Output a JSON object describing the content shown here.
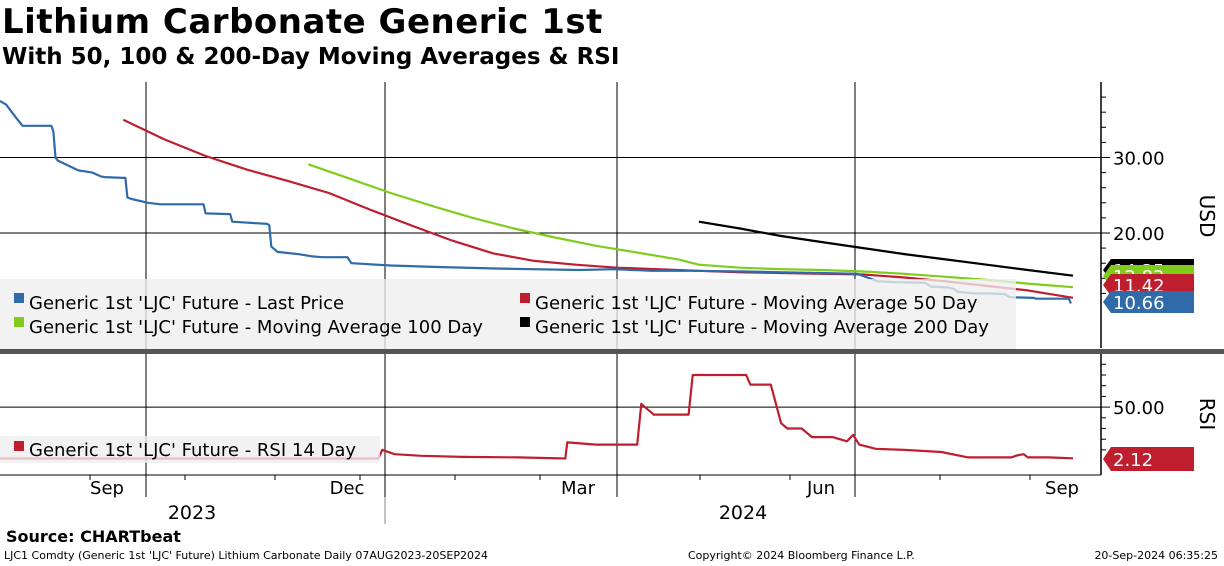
{
  "title": "Lithium Carbonate Generic 1st",
  "subtitle": "With 50, 100 & 200-Day Moving Averages & RSI",
  "source": "Source: CHARTbeat",
  "footer": {
    "left": "LJC1 Comdty (Generic 1st 'LJC' Future) Lithium Carbonate  Daily 07AUG2023-20SEP2024",
    "center": "Copyright© 2024 Bloomberg Finance L.P.",
    "right": "20-Sep-2024 06:35:25"
  },
  "chart_data": [
    {
      "type": "line",
      "panel": "price",
      "ylabel": "USD",
      "ylim": [
        9,
        40
      ],
      "yticks": [
        {
          "value": 20,
          "label": "20.00"
        },
        {
          "value": 30,
          "label": "30.00"
        }
      ],
      "x_month_labels": [
        "Sep",
        "Dec",
        "Mar",
        "Jun",
        "Sep"
      ],
      "x_year_labels": [
        "2023",
        "2024"
      ],
      "series": [
        {
          "name": "Generic 1st 'LJC' Future - Last Price",
          "color": "#2f6ba8",
          "points": [
            [
              0,
              37.5
            ],
            [
              3,
              37
            ],
            [
              8,
              35.2
            ],
            [
              11,
              34.2
            ],
            [
              25,
              34.2
            ],
            [
              26,
              33.4
            ],
            [
              27,
              30
            ],
            [
              28,
              29.6
            ],
            [
              38,
              28.3
            ],
            [
              45,
              28
            ],
            [
              49,
              27.5
            ],
            [
              51,
              27.4
            ],
            [
              60,
              27.3
            ],
            [
              61,
              27.3
            ],
            [
              62,
              24.7
            ],
            [
              64,
              24.5
            ],
            [
              72,
              24
            ],
            [
              78,
              23.8
            ],
            [
              99,
              23.8
            ],
            [
              100,
              22.6
            ],
            [
              112,
              22.5
            ],
            [
              113,
              21.5
            ],
            [
              130,
              21.2
            ],
            [
              131,
              21.0
            ],
            [
              132,
              18.2
            ],
            [
              135,
              17.5
            ],
            [
              145,
              17.2
            ],
            [
              152,
              16.9
            ],
            [
              157,
              16.8
            ],
            [
              169,
              16.8
            ],
            [
              171,
              16.0
            ],
            [
              190,
              15.7
            ],
            [
              213,
              15.5
            ],
            [
              241,
              15.3
            ],
            [
              259,
              15.2
            ],
            [
              282,
              15.1
            ],
            [
              299,
              15.2
            ],
            [
              317,
              15.0
            ],
            [
              336,
              15.0
            ],
            [
              363,
              14.9
            ],
            [
              381,
              14.8
            ],
            [
              399,
              14.7
            ],
            [
              417,
              14.6
            ],
            [
              427,
              13.6
            ],
            [
              435,
              13.5
            ],
            [
              450,
              13.4
            ],
            [
              453,
              12.9
            ],
            [
              461,
              12.8
            ],
            [
              464,
              12.6
            ],
            [
              466,
              12.2
            ],
            [
              474,
              12.0
            ],
            [
              482,
              12.0
            ],
            [
              489,
              11.9
            ],
            [
              491,
              11.5
            ],
            [
              503,
              11.4
            ],
            [
              504,
              11.3
            ],
            [
              520,
              11.3
            ],
            [
              521,
              10.66
            ]
          ]
        },
        {
          "name": "Generic 1st 'LJC' Future - Moving Average 50 Day",
          "color": "#be1e2d",
          "points": [
            [
              60,
              35
            ],
            [
              80,
              32.4
            ],
            [
              100,
              30.2
            ],
            [
              120,
              28.4
            ],
            [
              140,
              26.9
            ],
            [
              160,
              25.3
            ],
            [
              180,
              23.1
            ],
            [
              200,
              21.0
            ],
            [
              220,
              19.0
            ],
            [
              240,
              17.3
            ],
            [
              260,
              16.3
            ],
            [
              280,
              15.8
            ],
            [
              300,
              15.4
            ],
            [
              320,
              15.2
            ],
            [
              340,
              15.0
            ],
            [
              360,
              14.8
            ],
            [
              380,
              14.7
            ],
            [
              400,
              14.6
            ],
            [
              420,
              14.5
            ],
            [
              440,
              14.1
            ],
            [
              460,
              13.6
            ],
            [
              480,
              13.0
            ],
            [
              500,
              12.4
            ],
            [
              522,
              11.42
            ]
          ]
        },
        {
          "name": "Generic 1st 'LJC' Future - Moving Average 100 Day",
          "color": "#7fcc1c",
          "points": [
            [
              150,
              29.1
            ],
            [
              170,
              27.2
            ],
            [
              190,
              25.3
            ],
            [
              210,
              23.6
            ],
            [
              230,
              22.0
            ],
            [
              250,
              20.6
            ],
            [
              270,
              19.4
            ],
            [
              290,
              18.3
            ],
            [
              310,
              17.4
            ],
            [
              330,
              16.5
            ],
            [
              340,
              15.8
            ],
            [
              360,
              15.4
            ],
            [
              380,
              15.2
            ],
            [
              400,
              15.1
            ],
            [
              420,
              14.9
            ],
            [
              440,
              14.6
            ],
            [
              460,
              14.2
            ],
            [
              480,
              13.8
            ],
            [
              500,
              13.3
            ],
            [
              522,
              12.82
            ]
          ]
        },
        {
          "name": "Generic 1st 'LJC' Future - Moving Average 200 Day",
          "color": "#000000",
          "points": [
            [
              340,
              21.5
            ],
            [
              360,
              20.6
            ],
            [
              380,
              19.6
            ],
            [
              400,
              18.8
            ],
            [
              420,
              18.0
            ],
            [
              440,
              17.2
            ],
            [
              460,
              16.5
            ],
            [
              480,
              15.8
            ],
            [
              500,
              15.1
            ],
            [
              522,
              14.35
            ]
          ]
        }
      ],
      "last_value_tags": [
        {
          "label": "10.66",
          "color": "#2f6ba8",
          "series": "Last Price"
        },
        {
          "label": "11.42",
          "color": "#be1e2d",
          "series": "Moving Average 50 Day"
        },
        {
          "label": "12.82",
          "color": "#7fcc1c",
          "series": "Moving Average 100 Day"
        },
        {
          "label": "14.35",
          "color": "#000000",
          "series": "Moving Average 200 Day"
        }
      ]
    },
    {
      "type": "line",
      "panel": "rsi",
      "ylabel": "RSI",
      "ylim": [
        0,
        100
      ],
      "yticks": [
        {
          "value": 50,
          "label": "50.00"
        }
      ],
      "series": [
        {
          "name": "Generic 1st 'LJC' Future - RSI 14 Day",
          "color": "#be1e2d",
          "points": [
            [
              0,
              2
            ],
            [
              184,
              2
            ],
            [
              186,
              10
            ],
            [
              192,
              6
            ],
            [
              205,
              4.5
            ],
            [
              225,
              3.5
            ],
            [
              252,
              3
            ],
            [
              275,
              2
            ],
            [
              276,
              17
            ],
            [
              290,
              15
            ],
            [
              310,
              15
            ],
            [
              310,
              15
            ],
            [
              312,
              53
            ],
            [
              318,
              43
            ],
            [
              335,
              43
            ],
            [
              337,
              80
            ],
            [
              347,
              80
            ],
            [
              363,
              80
            ],
            [
              365,
              71
            ],
            [
              375,
              71
            ],
            [
              380,
              35
            ],
            [
              383,
              30
            ],
            [
              390,
              30
            ],
            [
              395,
              22
            ],
            [
              405,
              22
            ],
            [
              412,
              18
            ],
            [
              415,
              24
            ],
            [
              418,
              15
            ],
            [
              426,
              11
            ],
            [
              440,
              10
            ],
            [
              458,
              8
            ],
            [
              471,
              3
            ],
            [
              492,
              3
            ],
            [
              495,
              5
            ],
            [
              498,
              6
            ],
            [
              500,
              3
            ],
            [
              510,
              3
            ],
            [
              522,
              2.12
            ]
          ]
        }
      ],
      "last_value_tags": [
        {
          "label": "2.12",
          "color": "#be1e2d"
        }
      ]
    }
  ]
}
